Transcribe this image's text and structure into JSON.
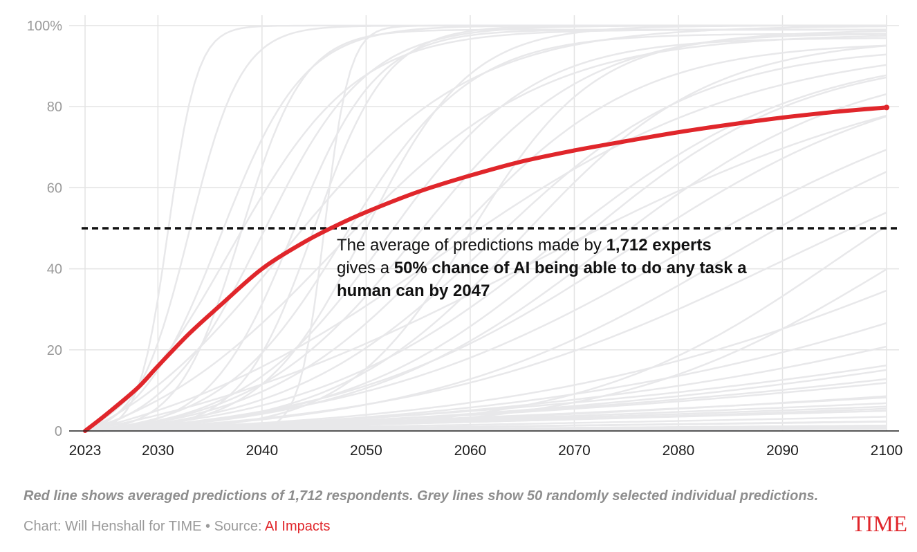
{
  "chart_data": {
    "type": "line",
    "title": "",
    "xlabel": "",
    "ylabel": "",
    "xlim": [
      2023,
      2100
    ],
    "ylim": [
      0,
      100
    ],
    "y_ticks": [
      {
        "value": 0,
        "label": "0"
      },
      {
        "value": 20,
        "label": "20"
      },
      {
        "value": 40,
        "label": "40"
      },
      {
        "value": 60,
        "label": "60"
      },
      {
        "value": 80,
        "label": "80"
      },
      {
        "value": 100,
        "label": "100%"
      }
    ],
    "x_ticks": [
      {
        "value": 2023,
        "label": "2023"
      },
      {
        "value": 2030,
        "label": "2030"
      },
      {
        "value": 2040,
        "label": "2040"
      },
      {
        "value": 2050,
        "label": "2050"
      },
      {
        "value": 2060,
        "label": "2060"
      },
      {
        "value": 2070,
        "label": "2070"
      },
      {
        "value": 2080,
        "label": "2080"
      },
      {
        "value": 2090,
        "label": "2090"
      },
      {
        "value": 2100,
        "label": "2100"
      }
    ],
    "grid": true,
    "reference_line": {
      "value": 50,
      "style": "dashed",
      "color": "#111111"
    },
    "average_series": {
      "name": "Averaged predictions of 1,712 respondents",
      "color": "#e0262b",
      "points": [
        [
          2023,
          0
        ],
        [
          2025,
          4
        ],
        [
          2028,
          10.5
        ],
        [
          2030,
          16
        ],
        [
          2033,
          24
        ],
        [
          2036,
          31
        ],
        [
          2040,
          40
        ],
        [
          2044,
          46.5
        ],
        [
          2047,
          50.5
        ],
        [
          2050,
          54
        ],
        [
          2055,
          59
        ],
        [
          2060,
          63
        ],
        [
          2065,
          66.5
        ],
        [
          2070,
          69.2
        ],
        [
          2075,
          71.5
        ],
        [
          2080,
          73.7
        ],
        [
          2085,
          75.6
        ],
        [
          2090,
          77.3
        ],
        [
          2095,
          78.7
        ],
        [
          2100,
          79.8
        ]
      ]
    },
    "sample_series_color": "#e8e8ea",
    "sample_series": [
      {
        "center": 2031,
        "width": 1.4,
        "max": 100
      },
      {
        "center": 2033,
        "width": 2.5,
        "max": 100
      },
      {
        "center": 2036,
        "width": 4,
        "max": 100
      },
      {
        "center": 2038,
        "width": 3,
        "max": 99
      },
      {
        "center": 2040,
        "width": 5,
        "max": 100
      },
      {
        "center": 2043,
        "width": 4,
        "max": 99
      },
      {
        "center": 2045,
        "width": 3.5,
        "max": 100
      },
      {
        "center": 2046,
        "width": 1.2,
        "max": 100
      },
      {
        "center": 2048,
        "width": 6,
        "max": 98
      },
      {
        "center": 2050,
        "width": 5,
        "max": 100
      },
      {
        "center": 2052,
        "width": 7,
        "max": 97
      },
      {
        "center": 2055,
        "width": 8,
        "max": 99
      },
      {
        "center": 2058,
        "width": 9,
        "max": 96
      },
      {
        "center": 2060,
        "width": 6,
        "max": 98
      },
      {
        "center": 2062,
        "width": 10,
        "max": 95
      },
      {
        "center": 2065,
        "width": 9,
        "max": 97
      },
      {
        "center": 2068,
        "width": 12,
        "max": 94
      },
      {
        "center": 2070,
        "width": 11,
        "max": 93
      },
      {
        "center": 2073,
        "width": 12,
        "max": 92
      },
      {
        "center": 2075,
        "width": 14,
        "max": 91
      },
      {
        "center": 2080,
        "width": 16,
        "max": 90
      },
      {
        "center": 2085,
        "width": 15,
        "max": 88
      },
      {
        "center": 2090,
        "width": 18,
        "max": 86
      },
      {
        "center": 2095,
        "width": 12,
        "max": 84
      },
      {
        "center": 2100,
        "width": 13,
        "max": 80
      },
      {
        "center": 2110,
        "width": 22,
        "max": 92
      },
      {
        "center": 2120,
        "width": 25,
        "max": 90
      },
      {
        "center": 2135,
        "width": 30,
        "max": 95
      },
      {
        "center": 2150,
        "width": 40,
        "max": 85
      },
      {
        "center": 2180,
        "width": 50,
        "max": 90
      },
      {
        "center": 2037,
        "width": 6,
        "max": 99
      },
      {
        "center": 2042,
        "width": 9,
        "max": 100
      },
      {
        "center": 2057,
        "width": 15,
        "max": 96
      },
      {
        "center": 2047,
        "width": 10,
        "max": 98
      },
      {
        "center": 2066,
        "width": 20,
        "max": 94
      },
      {
        "center": 2200,
        "width": 80,
        "max": 60
      },
      {
        "center": 2250,
        "width": 100,
        "max": 70
      },
      {
        "center": 2300,
        "width": 120,
        "max": 80
      },
      {
        "center": 2400,
        "width": 180,
        "max": 90
      },
      {
        "center": 2500,
        "width": 200,
        "max": 60
      },
      {
        "center": 2600,
        "width": 250,
        "max": 75
      },
      {
        "center": 2700,
        "width": 300,
        "max": 50
      },
      {
        "center": 2800,
        "width": 400,
        "max": 45
      },
      {
        "center": 3000,
        "width": 500,
        "max": 40
      },
      {
        "center": 3200,
        "width": 600,
        "max": 30
      },
      {
        "center": 2140,
        "width": 35,
        "max": 70
      },
      {
        "center": 2160,
        "width": 45,
        "max": 75
      },
      {
        "center": 2190,
        "width": 60,
        "max": 65
      },
      {
        "center": 2230,
        "width": 90,
        "max": 50
      },
      {
        "center": 2350,
        "width": 150,
        "max": 55
      }
    ]
  },
  "annotation": {
    "t1": "The average of predictions made by ",
    "t2": "1,712 experts",
    "t3": " gives a ",
    "t4": "50% chance of AI being able to do any task a human can by 2047"
  },
  "caption": "Red line shows averaged predictions of 1,712 respondents. Grey lines show 50 randomly selected individual predictions.",
  "credit": {
    "prefix": "Chart: Will Henshall for TIME • Source: ",
    "source": "AI Impacts"
  },
  "logo": "TIME"
}
